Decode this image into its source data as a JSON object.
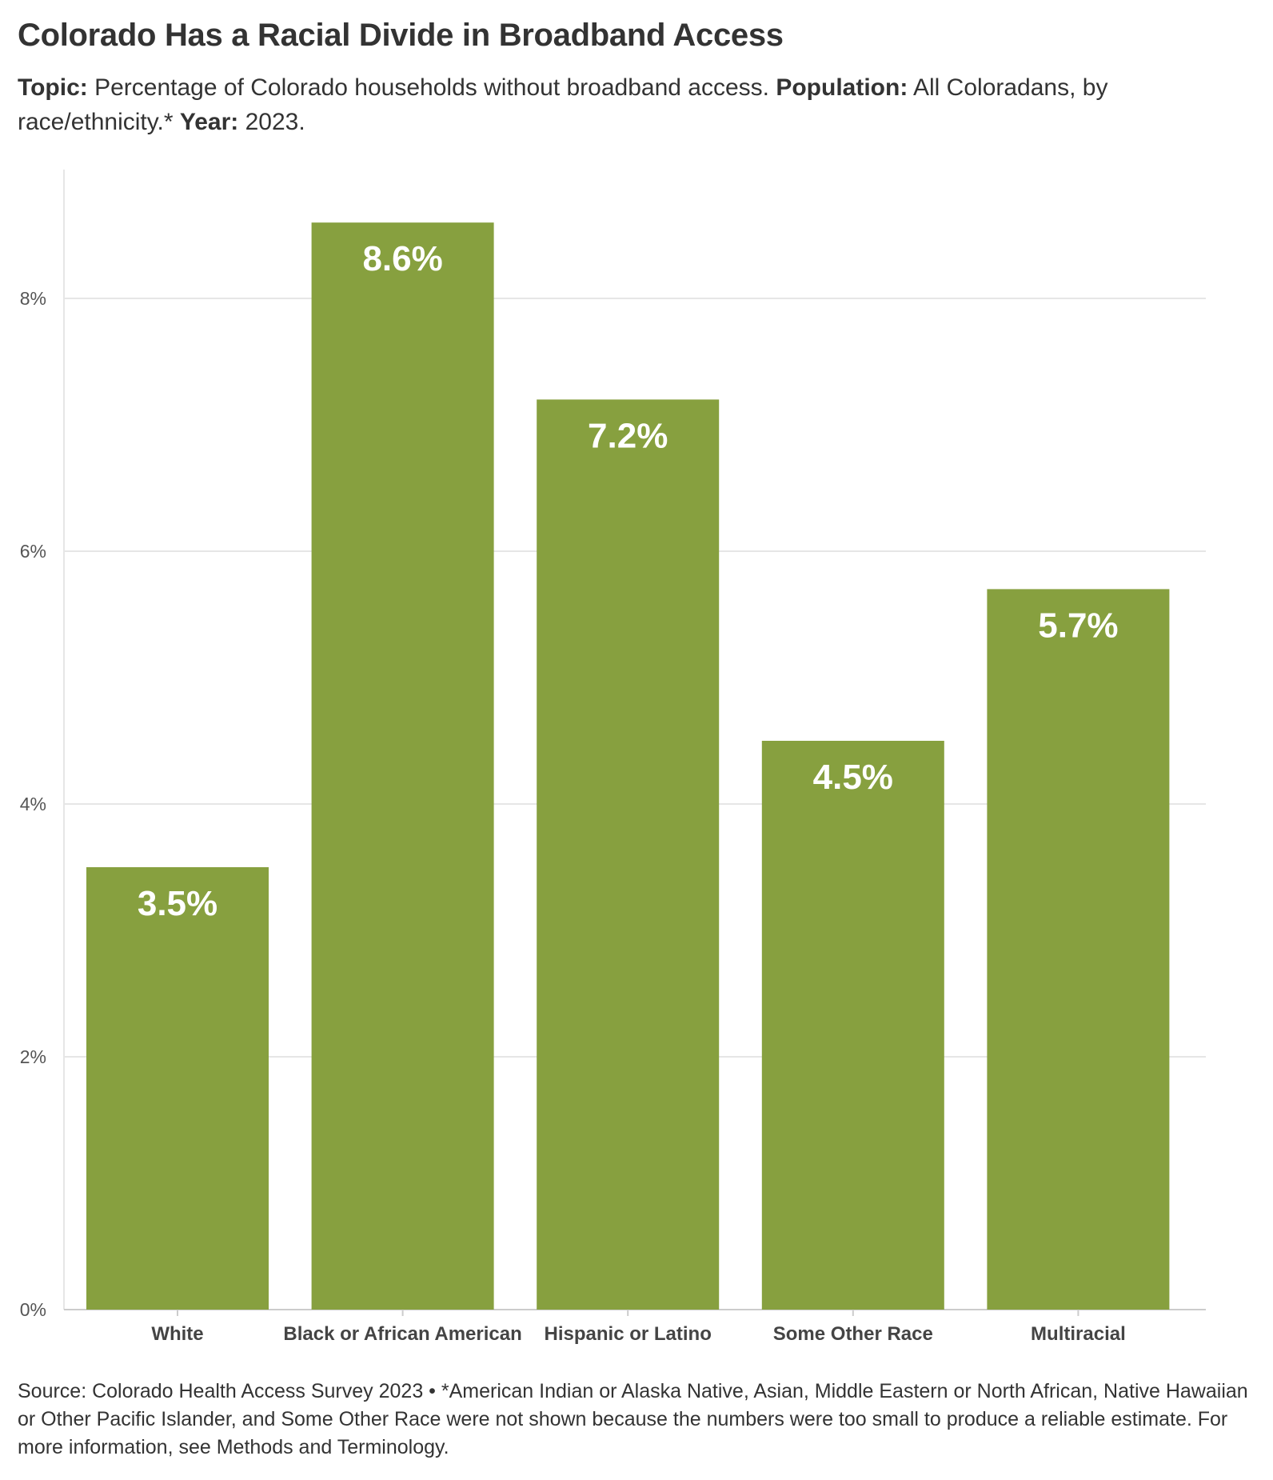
{
  "header": {
    "title": "Colorado Has a Racial Divide in Broadband Access",
    "subtitle": {
      "topic_label": "Topic:",
      "topic_text": " Percentage of Colorado households without broadband access. ",
      "population_label": "Population:",
      "population_text": " All Coloradans, by race/ethnicity.* ",
      "year_label": "Year:",
      "year_text": " 2023."
    }
  },
  "chart_data": {
    "type": "bar",
    "categories": [
      "White",
      "Black or African American",
      "Hispanic or Latino",
      "Some Other Race",
      "Multiracial"
    ],
    "values": [
      3.5,
      8.6,
      7.2,
      4.5,
      5.7
    ],
    "data_labels": [
      "3.5%",
      "8.6%",
      "7.2%",
      "4.5%",
      "5.7%"
    ],
    "ylim": [
      0,
      9
    ],
    "yticks": [
      0,
      2,
      4,
      6,
      8
    ],
    "ytick_labels": [
      "0%",
      "2%",
      "4%",
      "6%",
      "8%"
    ],
    "grid": true,
    "bar_color": "#87a03f",
    "grid_color": "#e6e6e6",
    "axis_color": "#cccccc"
  },
  "footer": {
    "source_text": "Source: Colorado Health Access Survey 2023 • *American Indian or Alaska Native, Asian, Middle Eastern or North African, Native Hawaiian or Other Pacific Islander, and Some Other Race were not shown because the numbers were too small to produce a reliable estimate. For more information, see Methods and Terminology."
  }
}
